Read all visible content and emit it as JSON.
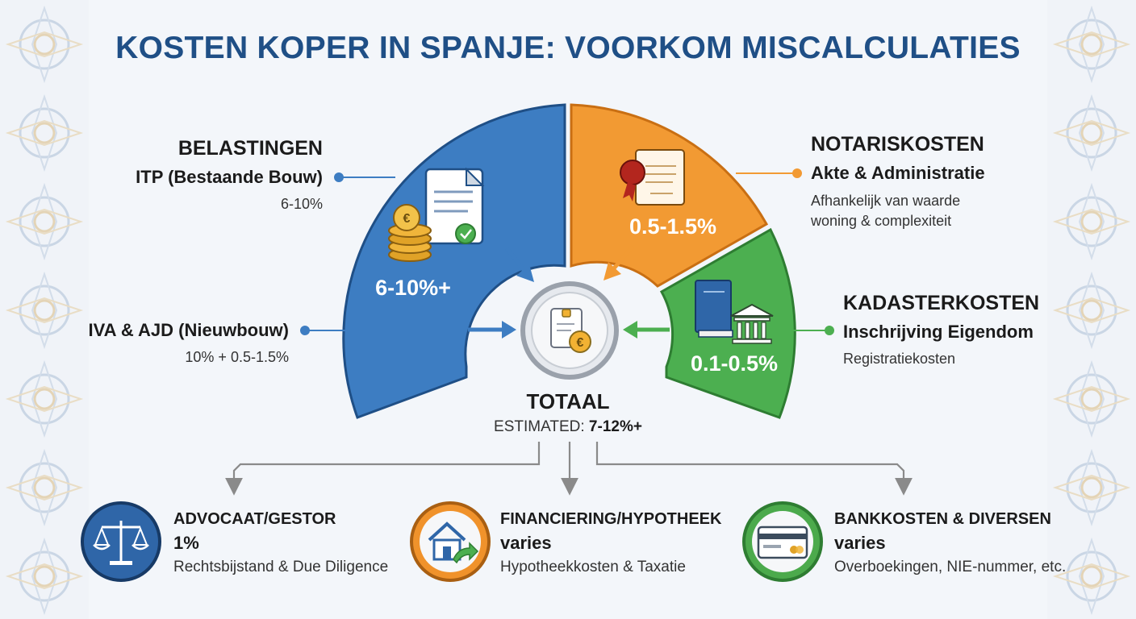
{
  "title": "KOSTEN KOPER IN SPANJE: VOORKOM MISCALCULATIES",
  "belastingen": {
    "heading": "BELASTINGEN",
    "itp_label": "ITP (Bestaande Bouw)",
    "itp_value": "6-10%",
    "iva_label": "IVA & AJD (Nieuwbouw)",
    "iva_value": "10% + 0.5-1.5%",
    "segment_value": "6-10%+"
  },
  "notariskosten": {
    "heading": "NOTARISKOSTEN",
    "sub": "Akte & Administratie",
    "note_line1": "Afhankelijk van waarde",
    "note_line2": "woning & complexiteit",
    "segment_value": "0.5-1.5%"
  },
  "kadasterkosten": {
    "heading": "KADASTERKOSTEN",
    "sub": "Inschrijving Eigendom",
    "note": "Registratiekosten",
    "segment_value": "0.1-0.5%"
  },
  "totaal": {
    "title": "TOTAAL",
    "estimated_label": "ESTIMATED:",
    "estimated_value": "7-12%+"
  },
  "bottom": [
    {
      "title": "ADVOCAAT/GESTOR",
      "value": "1%",
      "note": "Rechtsbijstand & Due Diligence",
      "icon": "scales-icon",
      "color": "#2f66a8"
    },
    {
      "title": "FINANCIERING/HYPOTHEEK",
      "value": "varies",
      "note": "Hypotheekkosten & Taxatie",
      "icon": "house-icon",
      "color": "#f0922b"
    },
    {
      "title": "BANKKOSTEN & DIVERSEN",
      "value": "varies",
      "note": "Overboekingen, NIE-nummer, etc.",
      "icon": "credit-card-icon",
      "color": "#4caa4c"
    }
  ],
  "colors": {
    "blue": "#3d7dc2",
    "orange": "#f29a33",
    "green": "#4caf50",
    "title": "#1f4f86"
  }
}
